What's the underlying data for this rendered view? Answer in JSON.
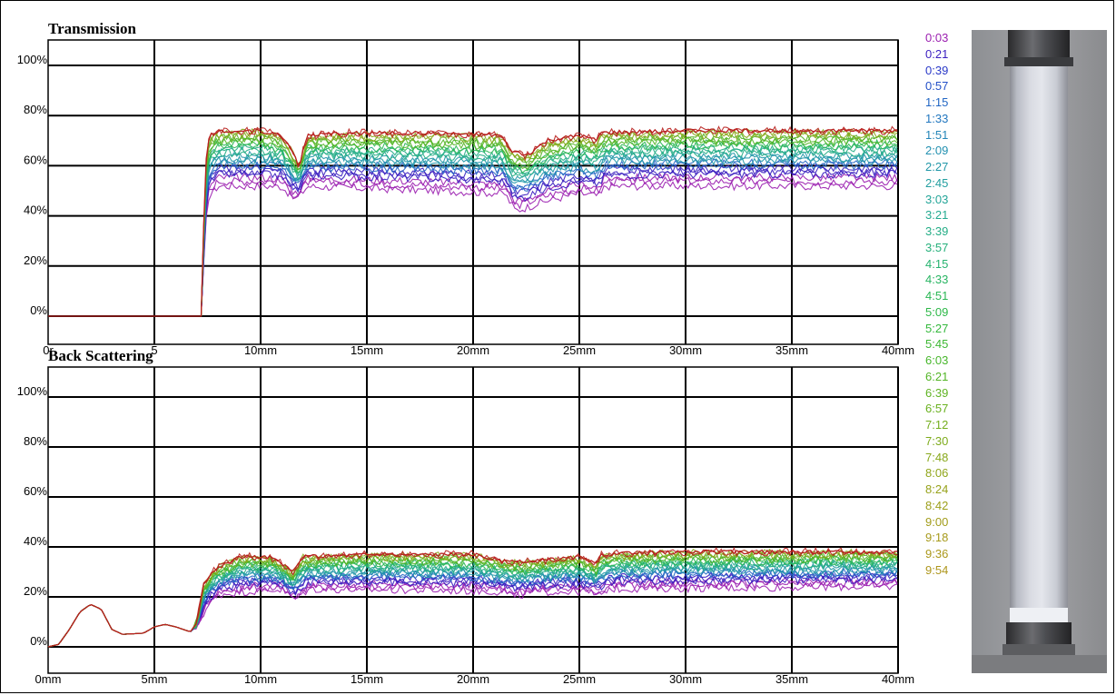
{
  "figure": {
    "legend_colors_note": "",
    "legend": [
      {
        "label": "0:03",
        "color": "#9b1fb0"
      },
      {
        "label": "0:21",
        "color": "#3a1ec0"
      },
      {
        "label": "0:39",
        "color": "#2a39c8"
      },
      {
        "label": "0:57",
        "color": "#2350c8"
      },
      {
        "label": "1:15",
        "color": "#2266c4"
      },
      {
        "label": "1:33",
        "color": "#2277bf"
      },
      {
        "label": "1:51",
        "color": "#2385b8"
      },
      {
        "label": "2:09",
        "color": "#2290b0"
      },
      {
        "label": "2:27",
        "color": "#2197a8"
      },
      {
        "label": "2:45",
        "color": "#229ea0"
      },
      {
        "label": "3:03",
        "color": "#23a598"
      },
      {
        "label": "3:21",
        "color": "#23aa90"
      },
      {
        "label": "3:39",
        "color": "#24ad86"
      },
      {
        "label": "3:57",
        "color": "#25b07b"
      },
      {
        "label": "4:15",
        "color": "#26b36f"
      },
      {
        "label": "4:33",
        "color": "#28b562"
      },
      {
        "label": "4:51",
        "color": "#2ab754"
      },
      {
        "label": "5:09",
        "color": "#2cb847"
      },
      {
        "label": "5:27",
        "color": "#33b83b"
      },
      {
        "label": "5:45",
        "color": "#3db833"
      },
      {
        "label": "6:03",
        "color": "#48b72c"
      },
      {
        "label": "6:21",
        "color": "#53b526"
      },
      {
        "label": "6:39",
        "color": "#5fb322"
      },
      {
        "label": "6:57",
        "color": "#6ab11f"
      },
      {
        "label": "7:12",
        "color": "#74ae1d"
      },
      {
        "label": "7:30",
        "color": "#7eab1c"
      },
      {
        "label": "7:48",
        "color": "#88a81b"
      },
      {
        "label": "8:06",
        "color": "#90a51a"
      },
      {
        "label": "8:24",
        "color": "#97a21a"
      },
      {
        "label": "8:42",
        "color": "#9d9f1a"
      },
      {
        "label": "9:00",
        "color": "#a29c1a"
      },
      {
        "label": "9:18",
        "color": "#a79a1b"
      },
      {
        "label": "9:36",
        "color": "#ab981b"
      },
      {
        "label": "9:54",
        "color": "#ae961c"
      }
    ],
    "final_curve_color": "#b8201e",
    "line_colors": [
      "#9b1fb0",
      "#3a1ec0",
      "#2266c4",
      "#2197a8",
      "#24ad86",
      "#2ab754",
      "#53b526",
      "#88a81b",
      "#b8201e"
    ]
  },
  "chart_data": [
    {
      "type": "line",
      "title": "Transmission",
      "xlabel": "",
      "ylabel": "",
      "xlim": [
        0,
        40
      ],
      "ylim": [
        -5,
        110
      ],
      "x_ticks": [
        0,
        5,
        10,
        15,
        20,
        25,
        30,
        35,
        40
      ],
      "x_tick_labels": [
        "0r",
        "5",
        "10mm",
        "15mm",
        "20mm",
        "25mm",
        "30mm",
        "35mm",
        "40mm"
      ],
      "y_ticks": [
        0,
        20,
        40,
        60,
        80,
        100
      ],
      "y_tick_labels": [
        "0%",
        "20%",
        "40%",
        "60%",
        "80%",
        "100%"
      ],
      "grid": true,
      "series": [
        {
          "values_top": [
            [
              0,
              0
            ],
            [
              0.15,
              0
            ],
            [
              7.2,
              0
            ],
            [
              7.4,
              60
            ],
            [
              7.6,
              72
            ],
            [
              8,
              74
            ],
            [
              10,
              74
            ],
            [
              11,
              72
            ],
            [
              11.5,
              66
            ],
            [
              11.8,
              60
            ],
            [
              12.2,
              72
            ],
            [
              14,
              73
            ],
            [
              18,
              73
            ],
            [
              21.3,
              72
            ],
            [
              21.8,
              66
            ],
            [
              22.5,
              64
            ],
            [
              23.5,
              70
            ],
            [
              25,
              72
            ],
            [
              25.8,
              70
            ],
            [
              26,
              73
            ],
            [
              30,
              74
            ],
            [
              34,
              74
            ],
            [
              37,
              74
            ],
            [
              40,
              74
            ]
          ],
          "values_bottom": [
            [
              0,
              0
            ],
            [
              0.15,
              0
            ],
            [
              7.2,
              0
            ],
            [
              7.5,
              45
            ],
            [
              8,
              50
            ],
            [
              11,
              50
            ],
            [
              11.6,
              45
            ],
            [
              12.2,
              50
            ],
            [
              21.5,
              47
            ],
            [
              22,
              40
            ],
            [
              23,
              43
            ],
            [
              25,
              47
            ],
            [
              26,
              46
            ],
            [
              26.2,
              50
            ],
            [
              30,
              50
            ],
            [
              40,
              50
            ]
          ]
        }
      ]
    },
    {
      "type": "line",
      "title": "Back Scattering",
      "xlabel": "",
      "ylabel": "",
      "xlim": [
        0,
        40
      ],
      "ylim": [
        -5,
        110
      ],
      "x_ticks": [
        0,
        5,
        10,
        15,
        20,
        25,
        30,
        35,
        40
      ],
      "x_tick_labels": [
        "0mm",
        "5mm",
        "10mm",
        "15mm",
        "20mm",
        "25mm",
        "30mm",
        "35mm",
        "40mm"
      ],
      "y_ticks": [
        0,
        20,
        40,
        60,
        80,
        100
      ],
      "y_tick_labels": [
        "0%",
        "20%",
        "40%",
        "60%",
        "80%",
        "100%"
      ],
      "grid": true,
      "series": [
        {
          "values_top": [
            [
              0,
              0
            ],
            [
              0.5,
              1
            ],
            [
              1,
              7
            ],
            [
              1.5,
              14
            ],
            [
              2,
              17
            ],
            [
              2.5,
              15
            ],
            [
              3,
              7
            ],
            [
              3.5,
              5
            ],
            [
              4.5,
              5.5
            ],
            [
              5,
              8
            ],
            [
              5.5,
              9
            ],
            [
              6,
              8
            ],
            [
              6.7,
              6
            ],
            [
              7,
              10
            ],
            [
              7.3,
              25
            ],
            [
              7.7,
              30
            ],
            [
              8.3,
              33
            ],
            [
              9,
              36
            ],
            [
              10.5,
              36
            ],
            [
              11,
              33
            ],
            [
              11.5,
              30
            ],
            [
              12,
              36
            ],
            [
              15,
              37
            ],
            [
              20,
              37
            ],
            [
              21.5,
              34
            ],
            [
              22.5,
              34
            ],
            [
              25,
              36
            ],
            [
              25.8,
              33
            ],
            [
              26,
              37
            ],
            [
              30,
              38
            ],
            [
              35,
              38
            ],
            [
              40,
              38
            ]
          ],
          "values_bottom": [
            [
              0,
              0
            ],
            [
              0.5,
              1
            ],
            [
              1,
              7
            ],
            [
              1.5,
              14
            ],
            [
              2,
              17
            ],
            [
              2.5,
              15
            ],
            [
              3,
              7
            ],
            [
              3.5,
              5
            ],
            [
              4.5,
              5.5
            ],
            [
              5,
              8
            ],
            [
              5.5,
              9
            ],
            [
              6,
              8
            ],
            [
              6.7,
              6
            ],
            [
              7,
              8
            ],
            [
              7.5,
              15
            ],
            [
              8,
              20
            ],
            [
              11,
              22
            ],
            [
              11.6,
              18
            ],
            [
              12.3,
              22
            ],
            [
              21.5,
              21
            ],
            [
              22,
              19
            ],
            [
              23,
              21
            ],
            [
              25.5,
              21
            ],
            [
              26,
              19
            ],
            [
              26.3,
              22
            ],
            [
              40,
              23
            ]
          ]
        }
      ]
    }
  ],
  "photo": {
    "label": ""
  }
}
